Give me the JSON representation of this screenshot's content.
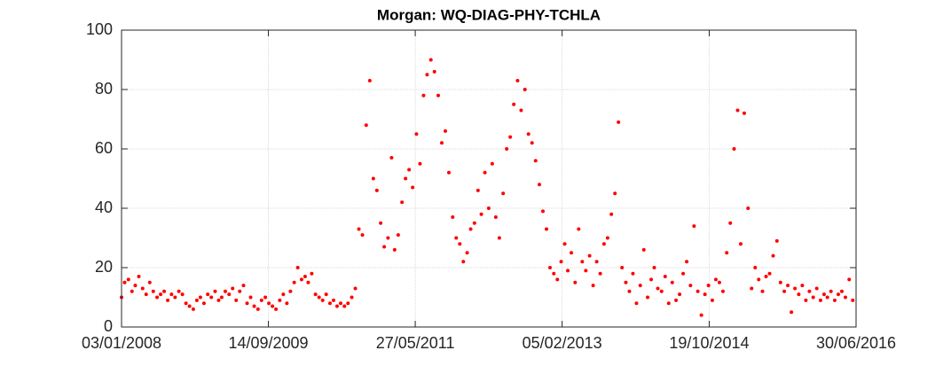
{
  "chart_data": {
    "type": "scatter",
    "title": "Morgan: WQ-DIAG-PHY-TCHLA",
    "color": "#ff0000",
    "grid": true,
    "xlim": [
      "03/01/2008",
      "30/06/2016"
    ],
    "xticks": [
      "03/01/2008",
      "14/09/2009",
      "27/05/2011",
      "05/02/2013",
      "19/10/2014",
      "30/06/2016"
    ],
    "ylim": [
      0,
      100
    ],
    "yticks": [
      0,
      20,
      40,
      60,
      80,
      100
    ],
    "x": [
      "03/01/2008",
      "16/01/2008",
      "01/02/2008",
      "16/02/2008",
      "01/03/2008",
      "16/03/2008",
      "01/04/2008",
      "16/04/2008",
      "01/05/2008",
      "16/05/2008",
      "01/06/2008",
      "16/06/2008",
      "01/07/2008",
      "16/07/2008",
      "01/08/2008",
      "16/08/2008",
      "01/09/2008",
      "16/09/2008",
      "01/10/2008",
      "16/10/2008",
      "01/11/2008",
      "16/11/2008",
      "01/12/2008",
      "16/12/2008",
      "01/01/2009",
      "16/01/2009",
      "01/02/2009",
      "16/02/2009",
      "01/03/2009",
      "16/03/2009",
      "01/04/2009",
      "16/04/2009",
      "01/05/2009",
      "16/05/2009",
      "01/06/2009",
      "16/06/2009",
      "01/07/2009",
      "16/07/2009",
      "01/08/2009",
      "16/08/2009",
      "01/09/2009",
      "16/09/2009",
      "01/10/2009",
      "16/10/2009",
      "01/11/2009",
      "16/11/2009",
      "01/12/2009",
      "16/12/2009",
      "01/01/2010",
      "16/01/2010",
      "01/02/2010",
      "16/02/2010",
      "01/03/2010",
      "16/03/2010",
      "01/04/2010",
      "16/04/2010",
      "01/05/2010",
      "16/05/2010",
      "01/06/2010",
      "16/06/2010",
      "01/07/2010",
      "16/07/2010",
      "01/08/2010",
      "16/08/2010",
      "01/09/2010",
      "16/09/2010",
      "01/10/2010",
      "16/10/2010",
      "01/11/2010",
      "16/11/2010",
      "01/12/2010",
      "16/12/2010",
      "01/01/2011",
      "16/01/2011",
      "01/02/2011",
      "16/02/2011",
      "01/03/2011",
      "16/03/2011",
      "01/04/2011",
      "16/04/2011",
      "01/05/2011",
      "16/05/2011",
      "01/06/2011",
      "16/06/2011",
      "01/07/2011",
      "16/07/2011",
      "01/08/2011",
      "16/08/2011",
      "01/09/2011",
      "16/09/2011",
      "01/10/2011",
      "16/10/2011",
      "01/11/2011",
      "16/11/2011",
      "01/12/2011",
      "16/12/2011",
      "01/01/2012",
      "16/01/2012",
      "01/02/2012",
      "16/02/2012",
      "01/03/2012",
      "16/03/2012",
      "01/04/2012",
      "16/04/2012",
      "01/05/2012",
      "16/05/2012",
      "01/06/2012",
      "16/06/2012",
      "01/07/2012",
      "16/07/2012",
      "01/08/2012",
      "16/08/2012",
      "01/09/2012",
      "16/09/2012",
      "01/10/2012",
      "16/10/2012",
      "01/11/2012",
      "16/11/2012",
      "01/12/2012",
      "16/12/2012",
      "01/01/2013",
      "16/01/2013",
      "01/02/2013",
      "16/02/2013",
      "01/03/2013",
      "16/03/2013",
      "01/04/2013",
      "16/04/2013",
      "01/05/2013",
      "16/05/2013",
      "01/06/2013",
      "16/06/2013",
      "01/07/2013",
      "16/07/2013",
      "01/08/2013",
      "16/08/2013",
      "01/09/2013",
      "16/09/2013",
      "01/10/2013",
      "16/10/2013",
      "01/11/2013",
      "16/11/2013",
      "01/12/2013",
      "16/12/2013",
      "01/01/2014",
      "16/01/2014",
      "01/02/2014",
      "16/02/2014",
      "01/03/2014",
      "16/03/2014",
      "01/04/2014",
      "16/04/2014",
      "01/05/2014",
      "16/05/2014",
      "01/06/2014",
      "16/06/2014",
      "01/07/2014",
      "16/07/2014",
      "01/08/2014",
      "16/08/2014",
      "01/09/2014",
      "16/09/2014",
      "01/10/2014",
      "16/10/2014",
      "01/11/2014",
      "16/11/2014",
      "01/12/2014",
      "16/12/2014",
      "01/01/2015",
      "16/01/2015",
      "01/02/2015",
      "16/02/2015",
      "01/03/2015",
      "16/03/2015",
      "01/04/2015",
      "16/04/2015",
      "01/05/2015",
      "16/05/2015",
      "01/06/2015",
      "16/06/2015",
      "01/07/2015",
      "16/07/2015",
      "01/08/2015",
      "16/08/2015",
      "01/09/2015",
      "16/09/2015",
      "01/10/2015",
      "16/10/2015",
      "01/11/2015",
      "16/11/2015",
      "01/12/2015",
      "16/12/2015",
      "01/01/2016",
      "16/01/2016",
      "01/02/2016",
      "16/02/2016",
      "01/03/2016",
      "16/03/2016",
      "01/04/2016",
      "16/04/2016",
      "01/05/2016",
      "16/05/2016",
      "01/06/2016",
      "16/06/2016"
    ],
    "values": [
      10,
      15,
      16,
      12,
      14,
      17,
      13,
      11,
      15,
      12,
      10,
      11,
      12,
      9,
      11,
      10,
      12,
      11,
      8,
      7,
      6,
      9,
      10,
      8,
      11,
      10,
      12,
      9,
      10,
      12,
      11,
      13,
      9,
      12,
      14,
      8,
      10,
      7,
      6,
      9,
      10,
      8,
      7,
      6,
      9,
      11,
      8,
      12,
      15,
      20,
      16,
      17,
      15,
      18,
      11,
      10,
      9,
      11,
      8,
      9,
      7,
      8,
      7,
      8,
      10,
      13,
      33,
      31,
      68,
      83,
      50,
      46,
      35,
      27,
      30,
      57,
      26,
      31,
      42,
      50,
      53,
      47,
      65,
      55,
      78,
      85,
      90,
      86,
      78,
      62,
      66,
      52,
      37,
      30,
      28,
      22,
      25,
      33,
      35,
      46,
      38,
      52,
      40,
      55,
      37,
      30,
      45,
      60,
      64,
      75,
      83,
      73,
      80,
      65,
      62,
      56,
      48,
      39,
      33,
      20,
      18,
      16,
      22,
      28,
      19,
      25,
      15,
      33,
      22,
      19,
      24,
      14,
      22,
      18,
      28,
      30,
      38,
      45,
      69,
      20,
      15,
      12,
      18,
      8,
      14,
      26,
      10,
      16,
      20,
      13,
      12,
      17,
      8,
      15,
      9,
      11,
      18,
      22,
      14,
      34,
      12,
      4,
      11,
      14,
      9,
      16,
      15,
      12,
      25,
      35,
      60,
      73,
      28,
      72,
      40,
      13,
      20,
      16,
      12,
      17,
      18,
      24,
      29,
      15,
      12,
      14,
      5,
      13,
      11,
      14,
      9,
      12,
      10,
      13,
      9,
      11,
      10,
      12,
      9,
      11,
      12,
      10,
      16,
      9
    ]
  }
}
